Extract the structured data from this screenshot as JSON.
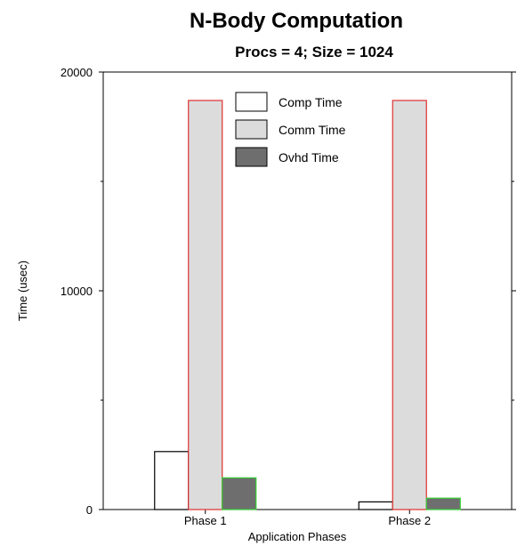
{
  "chart_data": {
    "type": "bar",
    "title": "N-Body Computation",
    "subtitle": "Procs = 4; Size = 1024",
    "xlabel": "Application Phases",
    "ylabel": "Time (usec)",
    "categories": [
      "Phase 1",
      "Phase 2"
    ],
    "ylim": [
      0,
      20000
    ],
    "yticks": [
      0,
      10000,
      20000
    ],
    "yticks_minor": [
      5000,
      15000
    ],
    "grid": false,
    "legend_position": "top-center",
    "series": [
      {
        "name": "Comp Time",
        "values": [
          2650,
          350
        ],
        "fill": "#ffffff",
        "stroke": "#000000"
      },
      {
        "name": "Comm Time",
        "values": [
          18700,
          18700
        ],
        "fill": "#dcdcdc",
        "stroke": "#e03030"
      },
      {
        "name": "Ovhd Time",
        "values": [
          1450,
          520
        ],
        "fill": "#6e6e6e",
        "stroke": "#33cc33"
      }
    ]
  }
}
